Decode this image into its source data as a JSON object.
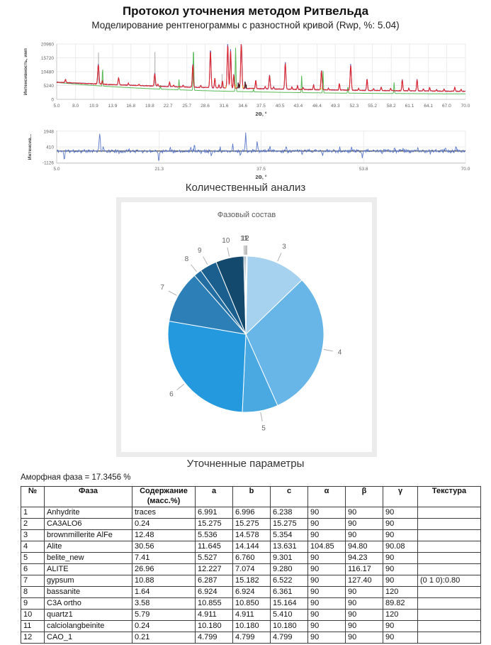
{
  "page": {
    "title": "Протокол уточнения методом Ритвельда",
    "subtitle": "Моделирование рентгенограммы с разностной кривой (Rwp, %: 5.04)"
  },
  "sections": {
    "quant_heading": "Количественный анализ",
    "params_heading": "Уточненные параметры",
    "amorphous": "Аморфная фаза = 17.3456 %"
  },
  "chart_data": [
    {
      "id": "xrd-pattern",
      "type": "line",
      "title": "",
      "xlabel": "2Θ, °",
      "ylabel": "Интенсивность, имп",
      "xlim": [
        5.0,
        70.0
      ],
      "ylim": [
        0,
        20960
      ],
      "yticks": [
        0,
        5240,
        10480,
        15720,
        20960
      ],
      "xticks": [
        5.0,
        8.0,
        10.9,
        13.9,
        16.8,
        19.8,
        22.7,
        25.7,
        28.6,
        31.6,
        34.6,
        37.5,
        40.5,
        43.4,
        46.4,
        49.3,
        52.3,
        55.2,
        58.2,
        61.1,
        64.1,
        67.0,
        70.0
      ],
      "grid": true,
      "shared_peaks": [
        [
          6.4,
          1300,
          0.1
        ],
        [
          11.62,
          7400,
          0.14
        ],
        [
          12.25,
          1200,
          0.09
        ],
        [
          14.85,
          2600,
          0.12
        ],
        [
          16.4,
          750,
          0.09
        ],
        [
          18.1,
          420,
          0.09
        ],
        [
          20.6,
          4700,
          0.13
        ],
        [
          21.1,
          700,
          0.09
        ],
        [
          22.95,
          1600,
          0.1
        ],
        [
          23.6,
          600,
          0.09
        ],
        [
          25.1,
          700,
          0.09
        ],
        [
          26.65,
          8600,
          0.12
        ],
        [
          27.9,
          800,
          0.09
        ],
        [
          29.45,
          14000,
          0.13
        ],
        [
          30.15,
          3600,
          0.1
        ],
        [
          30.8,
          1200,
          0.09
        ],
        [
          31.35,
          2600,
          0.1
        ],
        [
          32.2,
          16400,
          0.13
        ],
        [
          32.65,
          14200,
          0.12
        ],
        [
          33.15,
          5200,
          0.1
        ],
        [
          33.9,
          1500,
          0.09
        ],
        [
          34.35,
          16700,
          0.14
        ],
        [
          35.0,
          2200,
          0.1
        ],
        [
          36.65,
          3200,
          0.1
        ],
        [
          38.15,
          900,
          0.09
        ],
        [
          38.85,
          5200,
          0.12
        ],
        [
          39.5,
          800,
          0.09
        ],
        [
          41.35,
          9800,
          0.13
        ],
        [
          42.4,
          900,
          0.09
        ],
        [
          43.3,
          1400,
          0.09
        ],
        [
          44.2,
          700,
          0.09
        ],
        [
          45.85,
          1800,
          0.1
        ],
        [
          47.1,
          7400,
          0.12
        ],
        [
          48.2,
          600,
          0.09
        ],
        [
          49.95,
          2400,
          0.1
        ],
        [
          51.75,
          9500,
          0.13
        ],
        [
          53.0,
          700,
          0.09
        ],
        [
          54.35,
          4300,
          0.11
        ],
        [
          55.4,
          700,
          0.09
        ],
        [
          56.6,
          1300,
          0.1
        ],
        [
          58.1,
          800,
          0.09
        ],
        [
          59.95,
          4200,
          0.11
        ],
        [
          61.0,
          1000,
          0.09
        ],
        [
          62.3,
          4300,
          0.11
        ],
        [
          63.3,
          900,
          0.09
        ],
        [
          64.3,
          1300,
          0.1
        ],
        [
          65.4,
          600,
          0.09
        ],
        [
          66.6,
          800,
          0.09
        ],
        [
          68.3,
          1500,
          0.1
        ],
        [
          69.3,
          700,
          0.09
        ]
      ],
      "series": [
        {
          "name": "background-curve",
          "color": "#58b956",
          "kind": "curve",
          "base": [
            1900,
            4500,
            20
          ],
          "noise": 0,
          "seed": 1,
          "scale": 1,
          "peaks": [
            [
              12.3,
              6800,
              0.07
            ],
            [
              21.5,
              1500,
              0.06
            ],
            [
              24.45,
              4000,
              0.07
            ],
            [
              26.75,
              16500,
              0.08
            ],
            [
              33.45,
              16800,
              0.08
            ],
            [
              36.3,
              1200,
              0.06
            ],
            [
              43.95,
              6500,
              0.07
            ],
            [
              47.35,
              8500,
              0.07
            ],
            [
              51.3,
              2500,
              0.07
            ],
            [
              58.65,
              4300,
              0.07
            ]
          ]
        },
        {
          "name": "hkl-markers-gray",
          "color": "#b5b5b5",
          "kind": "sticks",
          "base": [
            2400,
            4100,
            35
          ],
          "peaks": [
            [
              11.65,
              11900
            ],
            [
              20.62,
              12900
            ],
            [
              31.3,
              5200
            ]
          ]
        },
        {
          "name": "calculated-curve",
          "color": "#5b66c4",
          "kind": "curve",
          "base": [
            2400,
            4100,
            35
          ],
          "noise": 150,
          "seed": 7,
          "scale": 1.04,
          "peaks": "shared"
        },
        {
          "name": "observed-curve",
          "color": "#e0262c",
          "kind": "curve",
          "base": [
            2400,
            4100,
            35
          ],
          "noise": 110,
          "seed": 3,
          "scale": 1.0,
          "peaks": "shared"
        },
        {
          "name": "phase-ticks-black",
          "color": "#1a1a1a",
          "kind": "sticks",
          "base": [
            2400,
            4100,
            35
          ],
          "peaks": [
            [
              33.85,
              2200
            ],
            [
              34.05,
              1500
            ],
            [
              34.95,
              2600
            ],
            [
              35.15,
              1400
            ]
          ]
        },
        {
          "name": "phase-ticks-yellow",
          "color": "#e8b33d",
          "kind": "sticks",
          "base": [
            2400,
            4100,
            35
          ],
          "peaks": [
            [
              31.9,
              900
            ],
            [
              33.4,
              1400
            ],
            [
              34.6,
              1100
            ],
            [
              47.0,
              800
            ]
          ]
        }
      ]
    },
    {
      "id": "difference-curve",
      "type": "line",
      "title": "",
      "xlabel": "2Θ, °",
      "ylabel": "Интенсив...",
      "xlim": [
        5.0,
        70.0
      ],
      "ylim": [
        -1180,
        2000
      ],
      "yticks": [
        1948,
        410,
        -1126
      ],
      "xticks": [
        5.0,
        21.3,
        37.5,
        53.8,
        70.0
      ],
      "grid": true,
      "zero_line_color": "#1a1a1a",
      "series": [
        {
          "name": "difference",
          "color": "#5b79c9",
          "noise": 200,
          "seed": 11,
          "peaks": [
            [
              6.2,
              -950,
              0.1
            ],
            [
              11.85,
              1800,
              0.12
            ],
            [
              12.4,
              500,
              0.08
            ],
            [
              14.9,
              -400,
              0.08
            ],
            [
              16.5,
              350,
              0.06
            ],
            [
              21.25,
              -1000,
              0.1
            ],
            [
              23.05,
              600,
              0.08
            ],
            [
              26.3,
              450,
              0.08
            ],
            [
              26.9,
              700,
              0.08
            ],
            [
              28.0,
              -350,
              0.06
            ],
            [
              29.6,
              -450,
              0.08
            ],
            [
              31.0,
              400,
              0.06
            ],
            [
              33.0,
              650,
              0.08
            ],
            [
              34.2,
              -500,
              0.08
            ],
            [
              35.05,
              1750,
              0.1
            ],
            [
              36.9,
              1000,
              0.1
            ],
            [
              38.9,
              450,
              0.08
            ],
            [
              41.5,
              500,
              0.08
            ],
            [
              44.0,
              -400,
              0.08
            ],
            [
              47.3,
              -550,
              0.08
            ],
            [
              50.0,
              350,
              0.06
            ],
            [
              51.9,
              550,
              0.08
            ],
            [
              53.6,
              -650,
              0.08
            ],
            [
              56.7,
              -350,
              0.06
            ],
            [
              58.7,
              350,
              0.06
            ],
            [
              60.1,
              400,
              0.06
            ],
            [
              62.4,
              400,
              0.06
            ],
            [
              64.4,
              -350,
              0.06
            ],
            [
              66.8,
              300,
              0.06
            ],
            [
              68.5,
              450,
              0.08
            ]
          ]
        }
      ]
    },
    {
      "id": "phase-pie",
      "type": "pie",
      "title": "Фазовый состав",
      "labels": [
        "1",
        "2",
        "3",
        "4",
        "5",
        "6",
        "7",
        "8",
        "9",
        "10",
        "11",
        "12"
      ],
      "values": [
        0.07,
        0.24,
        12.48,
        30.56,
        7.41,
        26.96,
        10.88,
        1.64,
        3.58,
        5.79,
        0.24,
        0.21
      ],
      "colors": [
        "#d8eaf8",
        "#bcdcf3",
        "#a6d2ef",
        "#68b6e8",
        "#49a9e0",
        "#2499dd",
        "#2d7fb8",
        "#226da2",
        "#1b5f8f",
        "#14496e",
        "#0f3a58",
        "#0b2c44"
      ],
      "legend_position": "none"
    }
  ],
  "table": {
    "columns": [
      "№",
      "Фаза",
      "Содержание\n(масс.%)",
      "a",
      "b",
      "c",
      "α",
      "β",
      "γ",
      "Текстура"
    ],
    "rows": [
      [
        "1",
        "Anhydrite",
        "traces",
        "6.991",
        "6.996",
        "6.238",
        "90",
        "90",
        "90",
        ""
      ],
      [
        "2",
        "CA3ALO6",
        "0.24",
        "15.275",
        "15.275",
        "15.275",
        "90",
        "90",
        "90",
        ""
      ],
      [
        "3",
        "brownmillerite AlFe",
        "12.48",
        "5.536",
        "14.578",
        "5.354",
        "90",
        "90",
        "90",
        ""
      ],
      [
        "4",
        "Alite",
        "30.56",
        "11.645",
        "14.144",
        "13.631",
        "104.85",
        "94.80",
        "90.08",
        ""
      ],
      [
        "5",
        "belite_new",
        "7.41",
        "5.527",
        "6.760",
        "9.301",
        "90",
        "94.23",
        "90",
        ""
      ],
      [
        "6",
        "ALITE",
        "26.96",
        "12.227",
        "7.074",
        "9.280",
        "90",
        "116.17",
        "90",
        ""
      ],
      [
        "7",
        "gypsum",
        "10.88",
        "6.287",
        "15.182",
        "6.522",
        "90",
        "127.40",
        "90",
        "(0 1 0):0.80"
      ],
      [
        "8",
        "bassanite",
        "1.64",
        "6.924",
        "6.924",
        "6.361",
        "90",
        "90",
        "120",
        ""
      ],
      [
        "9",
        "C3A ortho",
        "3.58",
        "10.855",
        "10.850",
        "15.164",
        "90",
        "90",
        "89.82",
        ""
      ],
      [
        "10",
        "quartz1",
        "5.79",
        "4.911",
        "4.911",
        "5.410",
        "90",
        "90",
        "120",
        ""
      ],
      [
        "11",
        "calciolangbeinite",
        "0.24",
        "10.180",
        "10.180",
        "10.180",
        "90",
        "90",
        "90",
        ""
      ],
      [
        "12",
        "CAO_1",
        "0.21",
        "4.799",
        "4.799",
        "4.799",
        "90",
        "90",
        "90",
        ""
      ]
    ]
  }
}
